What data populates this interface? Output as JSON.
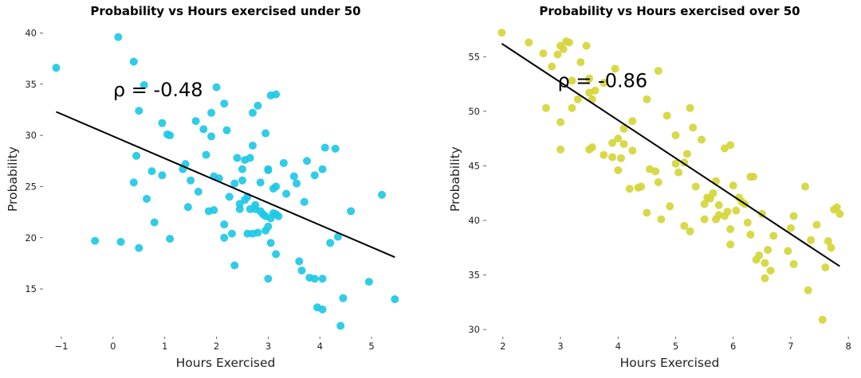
{
  "chart_data": [
    {
      "type": "scatter",
      "title": "Probability vs Hours exercised under 50",
      "xlabel": "Hours Exercised",
      "ylabel": "Probability",
      "xlim": [
        -1.2,
        5.6
      ],
      "ylim": [
        10.5,
        41.2
      ],
      "xticks": [
        -1,
        0,
        1,
        2,
        3,
        4,
        5
      ],
      "yticks": [
        15,
        20,
        25,
        30,
        35,
        40
      ],
      "grid": false,
      "point_color": "#1ec8e6",
      "annotation": "ρ = -0.48",
      "annotation_at": [
        0,
        33.8
      ],
      "fit_line": [
        [
          -1.1,
          32.3
        ],
        [
          5.45,
          18.1
        ]
      ],
      "x": [
        -1.1,
        0.1,
        0.4,
        0.6,
        0.5,
        0.95,
        1.05,
        1.1,
        1.35,
        1.6,
        1.9,
        2.0,
        2.15,
        2.2,
        2.4,
        2.55,
        2.7,
        2.8,
        2.95,
        3.05,
        3.15,
        0.45,
        0.4,
        0.65,
        0.75,
        0.95,
        1.45,
        1.5,
        1.65,
        1.75,
        1.85,
        1.95,
        2.15,
        2.3,
        2.45,
        2.5,
        2.65,
        2.7,
        2.85,
        3.0,
        3.0,
        3.15,
        3.35,
        3.5,
        3.75,
        3.9,
        4.05,
        4.3,
        -0.35,
        0.15,
        0.5,
        0.8,
        1.1,
        1.4,
        1.8,
        1.9,
        2.15,
        2.35,
        2.6,
        2.7,
        2.8,
        3.0,
        3.05,
        3.15,
        3.6,
        3.65,
        3.8,
        3.9,
        3.95,
        4.05,
        4.1,
        4.2,
        4.35,
        4.4,
        4.45,
        4.6,
        4.95,
        5.2,
        5.45,
        2.55,
        2.65,
        2.75,
        2.9,
        2.95,
        3.05,
        3.1,
        3.15,
        3.2,
        1.95,
        2.05,
        2.25,
        2.35,
        2.45,
        2.5,
        2.6,
        2.75,
        2.85,
        2.95,
        3.0,
        3.1,
        3.3,
        3.55,
        3.7,
        4.05
      ],
      "y": [
        36.6,
        39.6,
        37.2,
        34.9,
        32.4,
        31.2,
        30.1,
        30.0,
        26.7,
        31.4,
        32.2,
        34.7,
        33.1,
        30.5,
        27.8,
        27.6,
        29.0,
        32.9,
        30.2,
        33.9,
        34.0,
        28.0,
        25.4,
        23.8,
        26.5,
        26.1,
        23.0,
        25.6,
        24.5,
        30.6,
        22.6,
        26.0,
        21.3,
        20.4,
        22.8,
        26.7,
        27.8,
        32.2,
        25.4,
        26.7,
        26.6,
        25.0,
        24.3,
        26.0,
        27.5,
        26.1,
        26.7,
        28.7,
        19.7,
        19.6,
        19.0,
        21.5,
        19.9,
        27.2,
        28.1,
        29.9,
        20.0,
        17.3,
        20.4,
        20.4,
        20.5,
        16.0,
        19.5,
        18.4,
        17.7,
        16.8,
        16.1,
        16.0,
        13.2,
        16.0,
        28.8,
        19.5,
        20.1,
        11.4,
        14.1,
        22.6,
        15.7,
        24.2,
        14.0,
        23.7,
        22.8,
        22.8,
        22.3,
        22.1,
        21.9,
        22.4,
        22.3,
        22.1,
        22.7,
        25.8,
        24.0,
        25.3,
        23.3,
        25.6,
        24.0,
        23.2,
        22.6,
        20.7,
        21.1,
        24.8,
        27.3,
        25.3,
        23.5,
        13.0
      ]
    },
    {
      "type": "scatter",
      "title": "Probability vs Hours exercised over 50",
      "xlabel": "Hours Exercised",
      "ylabel": "Probability",
      "xlim": [
        1.85,
        8.15
      ],
      "ylim": [
        29.5,
        58.3
      ],
      "xticks": [
        2,
        3,
        4,
        5,
        6,
        7,
        8
      ],
      "yticks": [
        30,
        35,
        40,
        45,
        50,
        55
      ],
      "grid": false,
      "point_color": "#d4d63a",
      "annotation": "ρ = -0.86",
      "annotation_at": [
        2.95,
        52.2
      ],
      "fit_line": [
        [
          1.98,
          56.2
        ],
        [
          7.85,
          35.8
        ]
      ],
      "x": [
        1.98,
        2.45,
        2.7,
        2.85,
        2.95,
        3.0,
        3.05,
        3.1,
        3.15,
        3.2,
        3.35,
        3.45,
        3.5,
        3.6,
        3.75,
        3.95,
        4.1,
        4.25,
        4.5,
        4.7,
        2.75,
        3.0,
        3.2,
        3.3,
        3.5,
        3.55,
        3.9,
        4.0,
        4.1,
        4.25,
        4.4,
        4.55,
        4.7,
        4.85,
        5.0,
        5.15,
        5.25,
        5.3,
        5.45,
        5.55,
        5.7,
        5.75,
        5.85,
        5.95,
        6.0,
        6.1,
        6.2,
        6.3,
        6.35,
        6.5,
        3.0,
        3.5,
        3.55,
        3.75,
        3.9,
        4.0,
        4.05,
        4.2,
        4.35,
        4.5,
        4.75,
        4.9,
        5.05,
        5.15,
        5.25,
        5.5,
        5.6,
        5.7,
        5.85,
        5.9,
        5.95,
        6.15,
        6.25,
        6.4,
        6.55,
        6.6,
        6.7,
        6.95,
        7.05,
        7.3,
        7.35,
        7.45,
        7.6,
        7.7,
        7.8,
        7.85,
        4.65,
        5.0,
        5.2,
        5.35,
        5.5,
        5.65,
        5.75,
        5.95,
        6.05,
        6.3,
        6.45,
        6.55,
        6.65,
        7.0,
        7.05,
        7.25,
        7.55,
        7.65,
        7.75
      ],
      "y": [
        57.2,
        56.3,
        55.3,
        54.1,
        55.2,
        56.0,
        55.7,
        56.4,
        56.3,
        52.8,
        54.5,
        56.0,
        53.0,
        51.9,
        52.6,
        53.9,
        48.4,
        49.1,
        51.1,
        53.7,
        50.3,
        49.0,
        50.3,
        51.1,
        46.5,
        46.7,
        47.1,
        47.5,
        47.0,
        46.4,
        43.1,
        44.7,
        43.5,
        49.6,
        47.8,
        45.3,
        50.3,
        48.5,
        47.4,
        42.1,
        43.6,
        41.4,
        46.6,
        46.9,
        43.2,
        42.1,
        41.5,
        44.0,
        44.0,
        40.6,
        46.5,
        51.7,
        51.1,
        46.0,
        45.8,
        44.6,
        45.7,
        42.9,
        43.0,
        40.7,
        40.1,
        41.3,
        44.4,
        39.5,
        39.0,
        40.1,
        42.0,
        40.1,
        40.4,
        40.8,
        37.8,
        41.7,
        39.8,
        36.4,
        34.7,
        37.3,
        38.6,
        37.2,
        36.0,
        33.6,
        38.2,
        39.6,
        35.7,
        37.5,
        41.2,
        40.6,
        44.5,
        45.2,
        46.1,
        43.1,
        41.5,
        42.5,
        40.5,
        39.2,
        40.9,
        38.7,
        36.8,
        36.1,
        35.4,
        39.3,
        40.4,
        43.1,
        30.9,
        38.1,
        41.0
      ]
    }
  ]
}
